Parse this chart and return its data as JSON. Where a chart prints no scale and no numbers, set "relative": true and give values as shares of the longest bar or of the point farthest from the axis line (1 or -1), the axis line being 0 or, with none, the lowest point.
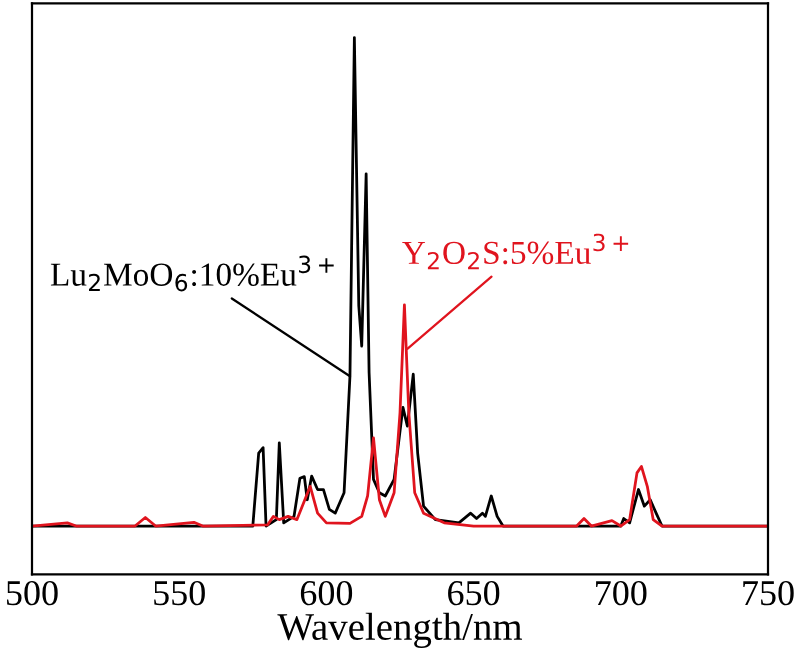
{
  "chart_data": {
    "type": "line",
    "relative": true,
    "xlabel": "Wavelength/nm",
    "xlim": [
      500,
      750
    ],
    "xticks": [
      500,
      550,
      600,
      650,
      700,
      750
    ],
    "grid": false,
    "legend": false,
    "marker": "none",
    "line_style": "solid",
    "tick_labels": "x",
    "series": [
      {
        "color": "#000000",
        "x": [
          500,
          575,
          577,
          578.5,
          579.5,
          583,
          584,
          585.5,
          589,
          591,
          592.5,
          593.5,
          595,
          597,
          599,
          601,
          603,
          606,
          608,
          609.5,
          611,
          612,
          613.5,
          614.5,
          616,
          618,
          620,
          623,
          626,
          627.5,
          629.5,
          631,
          633,
          637,
          645,
          649,
          651,
          653,
          654,
          656,
          658,
          660,
          700,
          701,
          703,
          706,
          708,
          710,
          712,
          714,
          750
        ],
        "values": [
          0.09,
          0.09,
          0.226,
          0.236,
          0.09,
          0.102,
          0.245,
          0.096,
          0.108,
          0.179,
          0.182,
          0.139,
          0.183,
          0.158,
          0.158,
          0.121,
          0.114,
          0.152,
          0.369,
          1,
          0.5,
          0.425,
          0.746,
          0.376,
          0.177,
          0.152,
          0.146,
          0.177,
          0.311,
          0.276,
          0.373,
          0.226,
          0.127,
          0.102,
          0.096,
          0.114,
          0.104,
          0.114,
          0.108,
          0.146,
          0.108,
          0.09,
          0.09,
          0.104,
          0.096,
          0.158,
          0.127,
          0.139,
          0.114,
          0.09,
          0.09
        ]
      },
      {
        "color": "#e0141e",
        "x": [
          500,
          512,
          515,
          535,
          538.5,
          542,
          555,
          558,
          580,
          582,
          584,
          587,
          590,
          594.5,
          597,
          600,
          608,
          612,
          614,
          616,
          618,
          620,
          623,
          625,
          626.5,
          628,
          630,
          633,
          640,
          650,
          685,
          687.5,
          690,
          697,
          700,
          703,
          705.5,
          707,
          709,
          711,
          714,
          750
        ],
        "values": [
          0.09,
          0.096,
          0.09,
          0.09,
          0.106,
          0.09,
          0.097,
          0.09,
          0.092,
          0.108,
          0.102,
          0.108,
          0.102,
          0.164,
          0.114,
          0.096,
          0.095,
          0.108,
          0.146,
          0.254,
          0.139,
          0.108,
          0.152,
          0.301,
          0.502,
          0.301,
          0.152,
          0.114,
          0.096,
          0.09,
          0.09,
          0.104,
          0.09,
          0.1,
          0.09,
          0.102,
          0.189,
          0.201,
          0.164,
          0.102,
          0.09,
          0.09
        ]
      }
    ],
    "annotations": [
      {
        "text": "Lu$_{2}$MoO$_{6}$:10%Eu$^{3+}$",
        "x": 608,
        "y": 0.369
      },
      {
        "text": "Y$_{2}$O$_{2}$S:5%Eu$^{3+}$",
        "x": 627.5,
        "y": 0.42
      }
    ]
  }
}
